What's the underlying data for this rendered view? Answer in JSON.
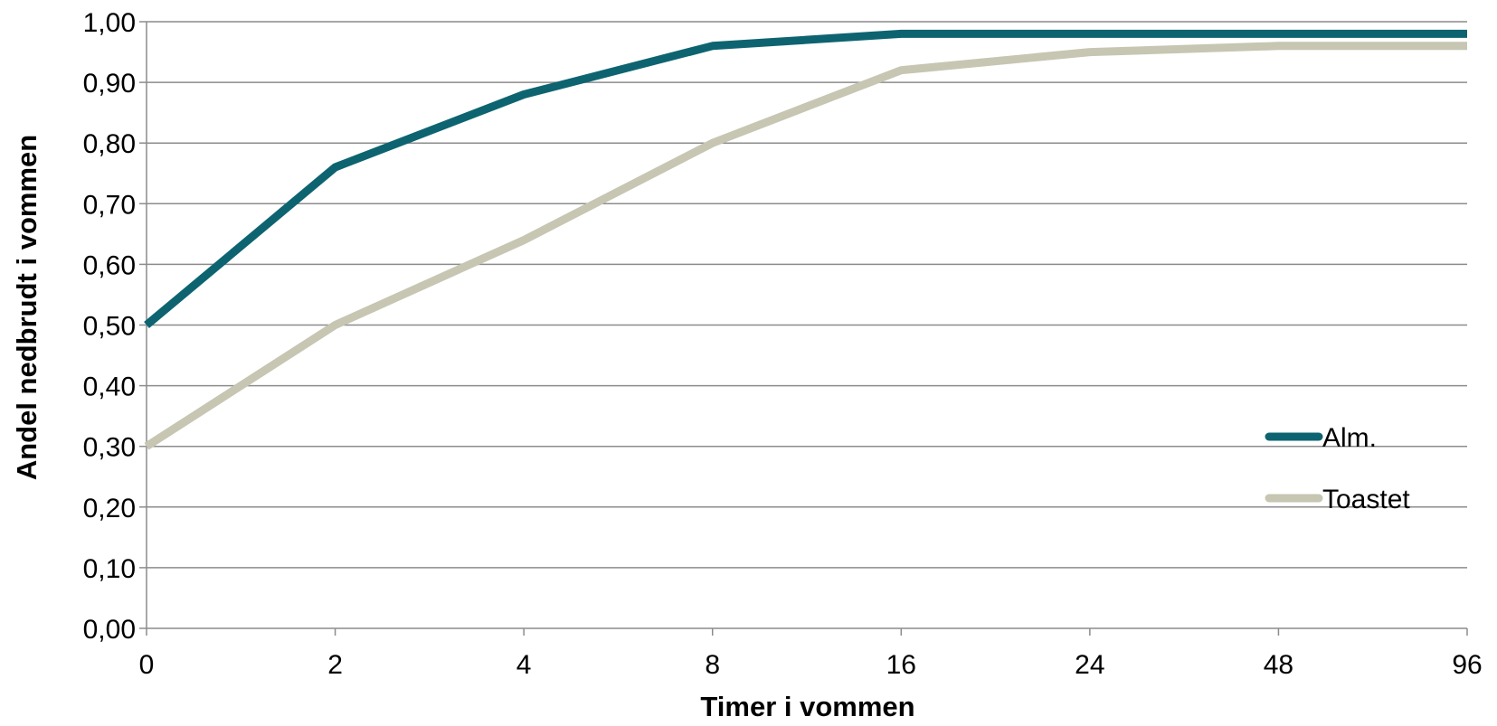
{
  "chart_data": {
    "type": "line",
    "categories": [
      "0",
      "2",
      "4",
      "8",
      "16",
      "24",
      "48",
      "96"
    ],
    "series": [
      {
        "name": "Alm.",
        "color": "#0d6470",
        "values": [
          0.5,
          0.76,
          0.88,
          0.96,
          0.98,
          0.98,
          0.98,
          0.98
        ]
      },
      {
        "name": "Toastet",
        "color": "#c6c6b2",
        "values": [
          0.3,
          0.5,
          0.64,
          0.8,
          0.92,
          0.95,
          0.96,
          0.96
        ]
      }
    ],
    "y_ticks": [
      "0,00",
      "0,10",
      "0,20",
      "0,30",
      "0,40",
      "0,50",
      "0,60",
      "0,70",
      "0,80",
      "0,90",
      "1,00"
    ],
    "ylim": [
      0,
      1
    ],
    "xlabel": "Timer i vommen",
    "ylabel": "Andel nedbrudt i vommen",
    "grid": true,
    "legend_position": "right"
  }
}
